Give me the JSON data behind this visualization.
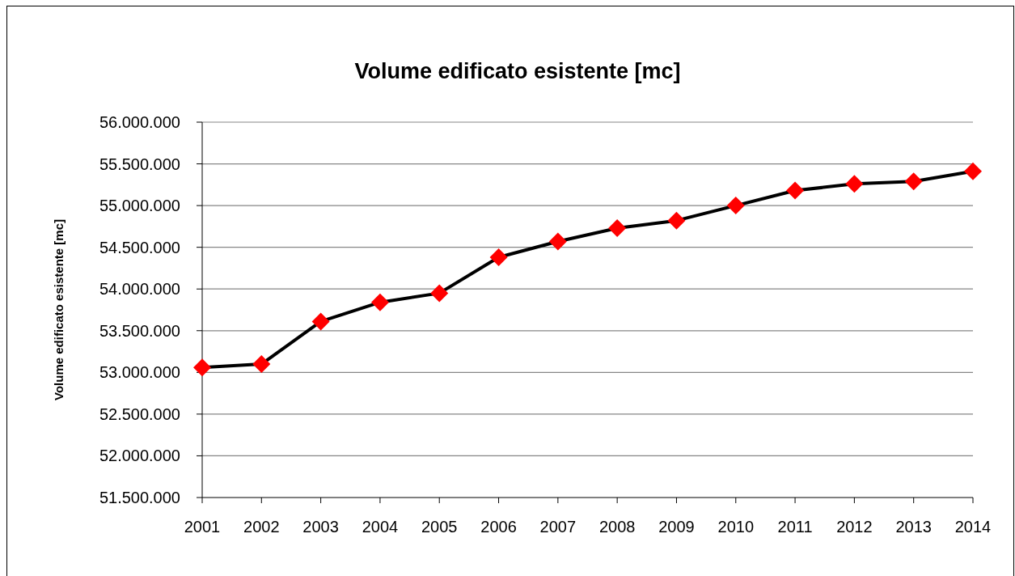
{
  "chart_data": {
    "type": "line",
    "title": "Volume edificato esistente [mc]",
    "ylabel": "Volume edificato esistente [mc]",
    "categories": [
      "2001",
      "2002",
      "2003",
      "2004",
      "2005",
      "2006",
      "2007",
      "2008",
      "2009",
      "2010",
      "2011",
      "2012",
      "2013",
      "2014"
    ],
    "series": [
      {
        "color": "#000000",
        "colors": [
          "#ff0000",
          "#ff0000",
          "#ff0000",
          "#ff0000",
          "#ff0000",
          "#ff0000",
          "#ff0000",
          "#ff0000",
          "#ff0000",
          "#ff0000",
          "#ff0000",
          "#ff0000",
          "#ff0000",
          "#ff0000"
        ],
        "values": [
          53060000,
          53100000,
          53610000,
          53840000,
          53950000,
          54380000,
          54570000,
          54730000,
          54820000,
          55000000,
          55180000,
          55260000,
          55290000,
          55410000
        ]
      }
    ],
    "ylim": [
      51500000,
      56000000
    ],
    "yticks": [
      {
        "value": 51500000,
        "label": "51.500.000"
      },
      {
        "value": 52000000,
        "label": "52.000.000"
      },
      {
        "value": 52500000,
        "label": "52.500.000"
      },
      {
        "value": 53000000,
        "label": "53.000.000"
      },
      {
        "value": 53500000,
        "label": "53.500.000"
      },
      {
        "value": 54000000,
        "label": "54.000.000"
      },
      {
        "value": 54500000,
        "label": "54.500.000"
      },
      {
        "value": 55000000,
        "label": "55.000.000"
      },
      {
        "value": 55500000,
        "label": "55.500.000"
      },
      {
        "value": 56000000,
        "label": "56.000.000"
      }
    ],
    "grid": "y",
    "marker": "diamond",
    "line_style": "solid"
  }
}
